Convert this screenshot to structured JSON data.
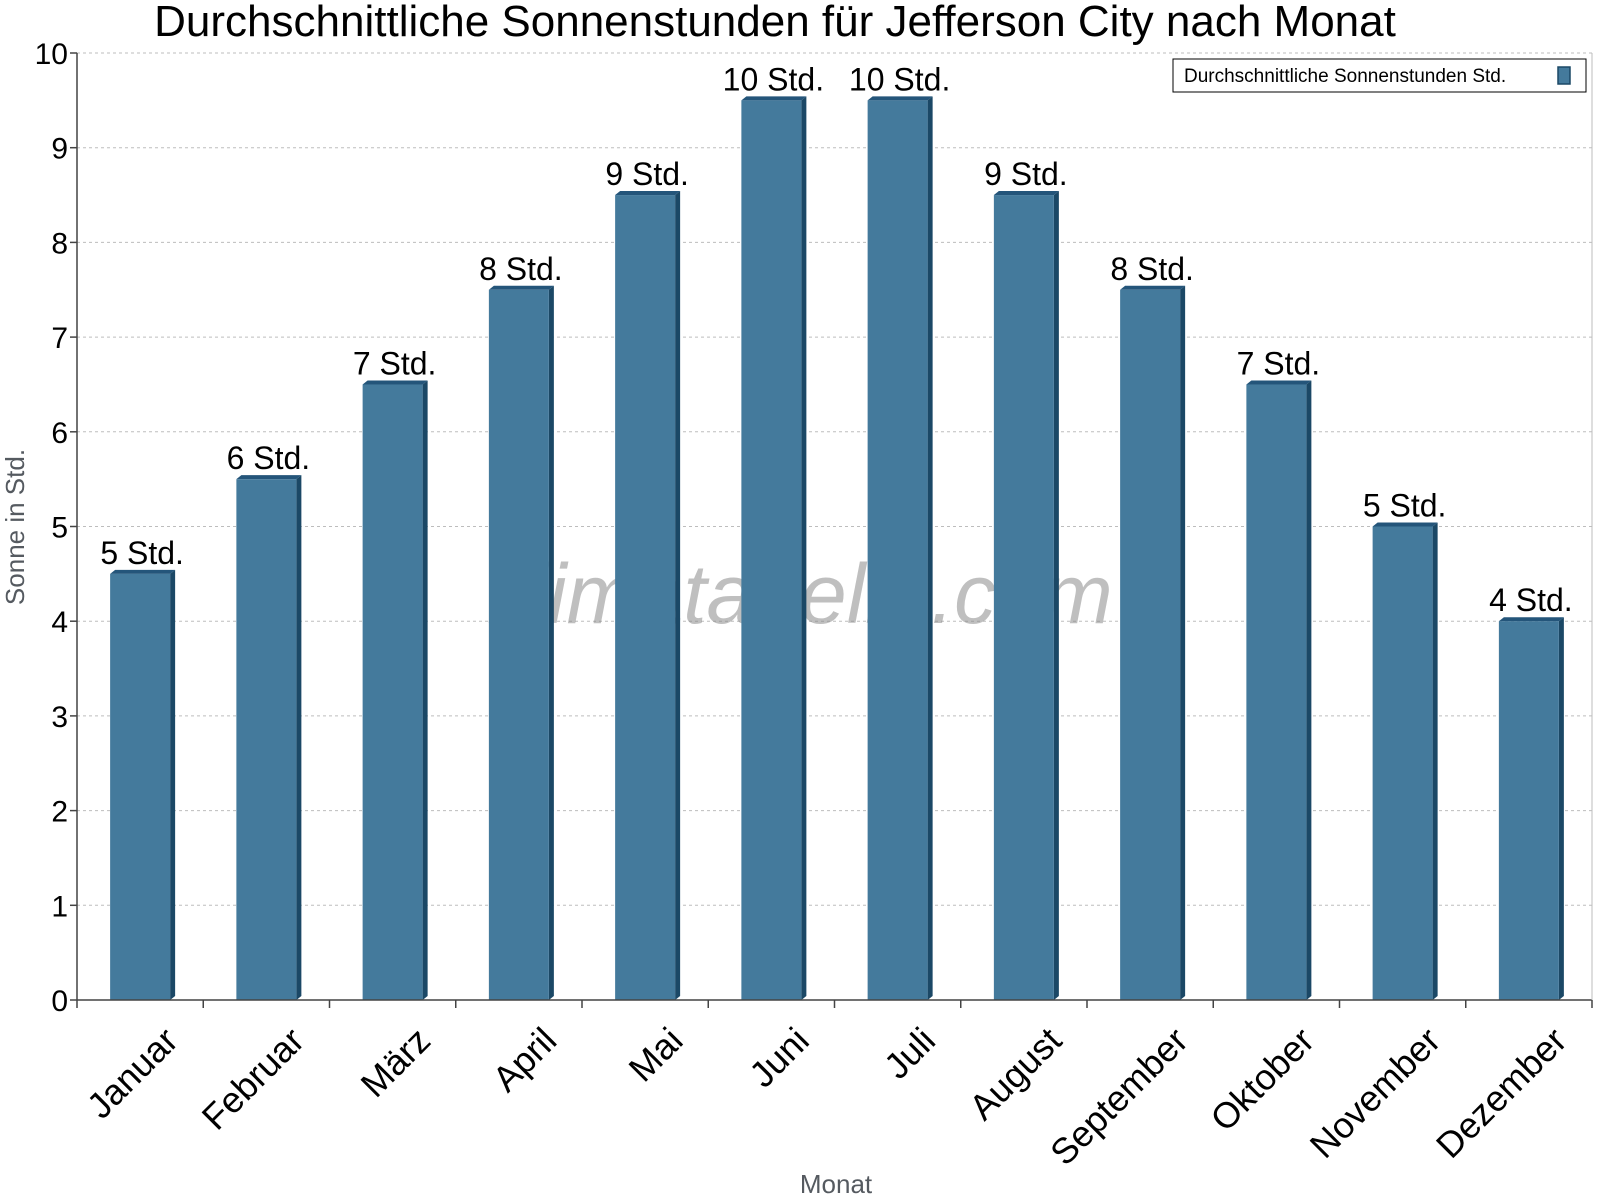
{
  "chart_data": {
    "type": "bar",
    "title": "Durchschnittliche Sonnenstunden für Jefferson City nach Monat",
    "xlabel": "Monat",
    "ylabel": "Sonne in Std.",
    "ylim": [
      0,
      10
    ],
    "yticks": [
      "0",
      "1",
      "2",
      "3",
      "4",
      "5",
      "6",
      "7",
      "8",
      "9",
      "10"
    ],
    "grid": true,
    "legend_position": "top-right",
    "categories": [
      "Januar",
      "Februar",
      "März",
      "April",
      "Mai",
      "Juni",
      "Juli",
      "August",
      "September",
      "Oktober",
      "November",
      "Dezember"
    ],
    "series": [
      {
        "name": "Durchschnittliche Sonnenstunden Std.",
        "values": [
          4.5,
          5.5,
          6.5,
          7.5,
          8.5,
          9.5,
          9.5,
          8.5,
          7.5,
          6.5,
          5.0,
          4.0
        ],
        "labels": [
          "5 Std.",
          "6 Std.",
          "7 Std.",
          "8 Std.",
          "9 Std.",
          "10 Std.",
          "10 Std.",
          "9 Std.",
          "8 Std.",
          "7 Std.",
          "5 Std.",
          "4 Std."
        ]
      }
    ],
    "colors": {
      "bar": "#447a9c",
      "bar_side": "#1b4866",
      "bar_top": "#24557a"
    },
    "watermark": "klimatabelle.com"
  }
}
